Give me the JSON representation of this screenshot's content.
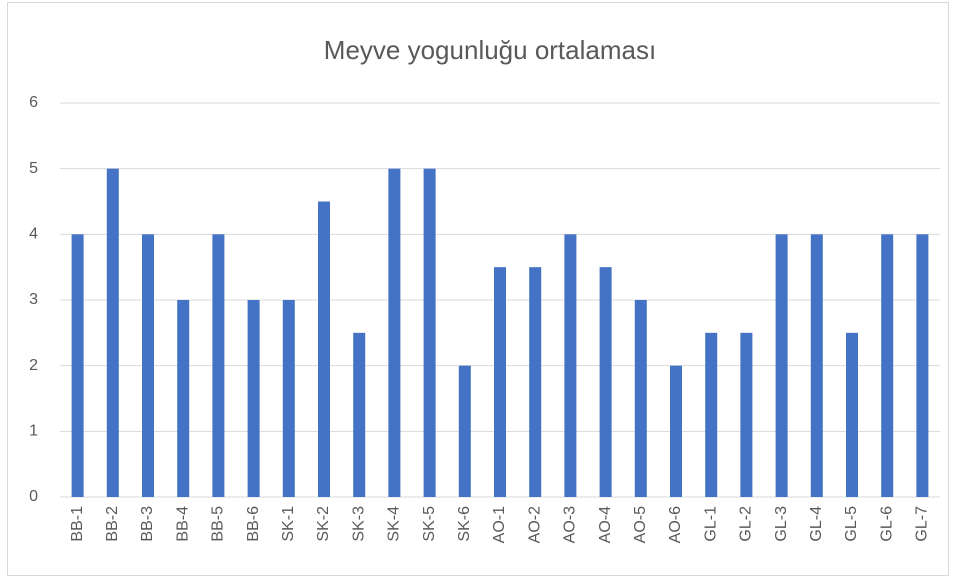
{
  "chart_data": {
    "type": "bar",
    "title": "Meyve yogunluğu ortalaması",
    "categories": [
      "BB-1",
      "BB-2",
      "BB-3",
      "BB-4",
      "BB-5",
      "BB-6",
      "SK-1",
      "SK-2",
      "SK-3",
      "SK-4",
      "SK-5",
      "SK-6",
      "AO-1",
      "AO-2",
      "AO-3",
      "AO-4",
      "AO-5",
      "AO-6",
      "GL-1",
      "GL-2",
      "GL-3",
      "GL-4",
      "GL-5",
      "GL-6",
      "GL-7"
    ],
    "values": [
      4,
      5,
      4,
      3,
      4,
      3,
      3,
      4.5,
      2.5,
      5,
      5,
      2,
      3.5,
      3.5,
      4,
      3.5,
      3,
      2,
      2.5,
      2.5,
      4,
      4,
      2.5,
      4,
      4
    ],
    "color": "#4472c4",
    "ylim": [
      0,
      6
    ],
    "yticks": [
      0,
      1,
      2,
      3,
      4,
      5,
      6
    ],
    "grid": true
  }
}
